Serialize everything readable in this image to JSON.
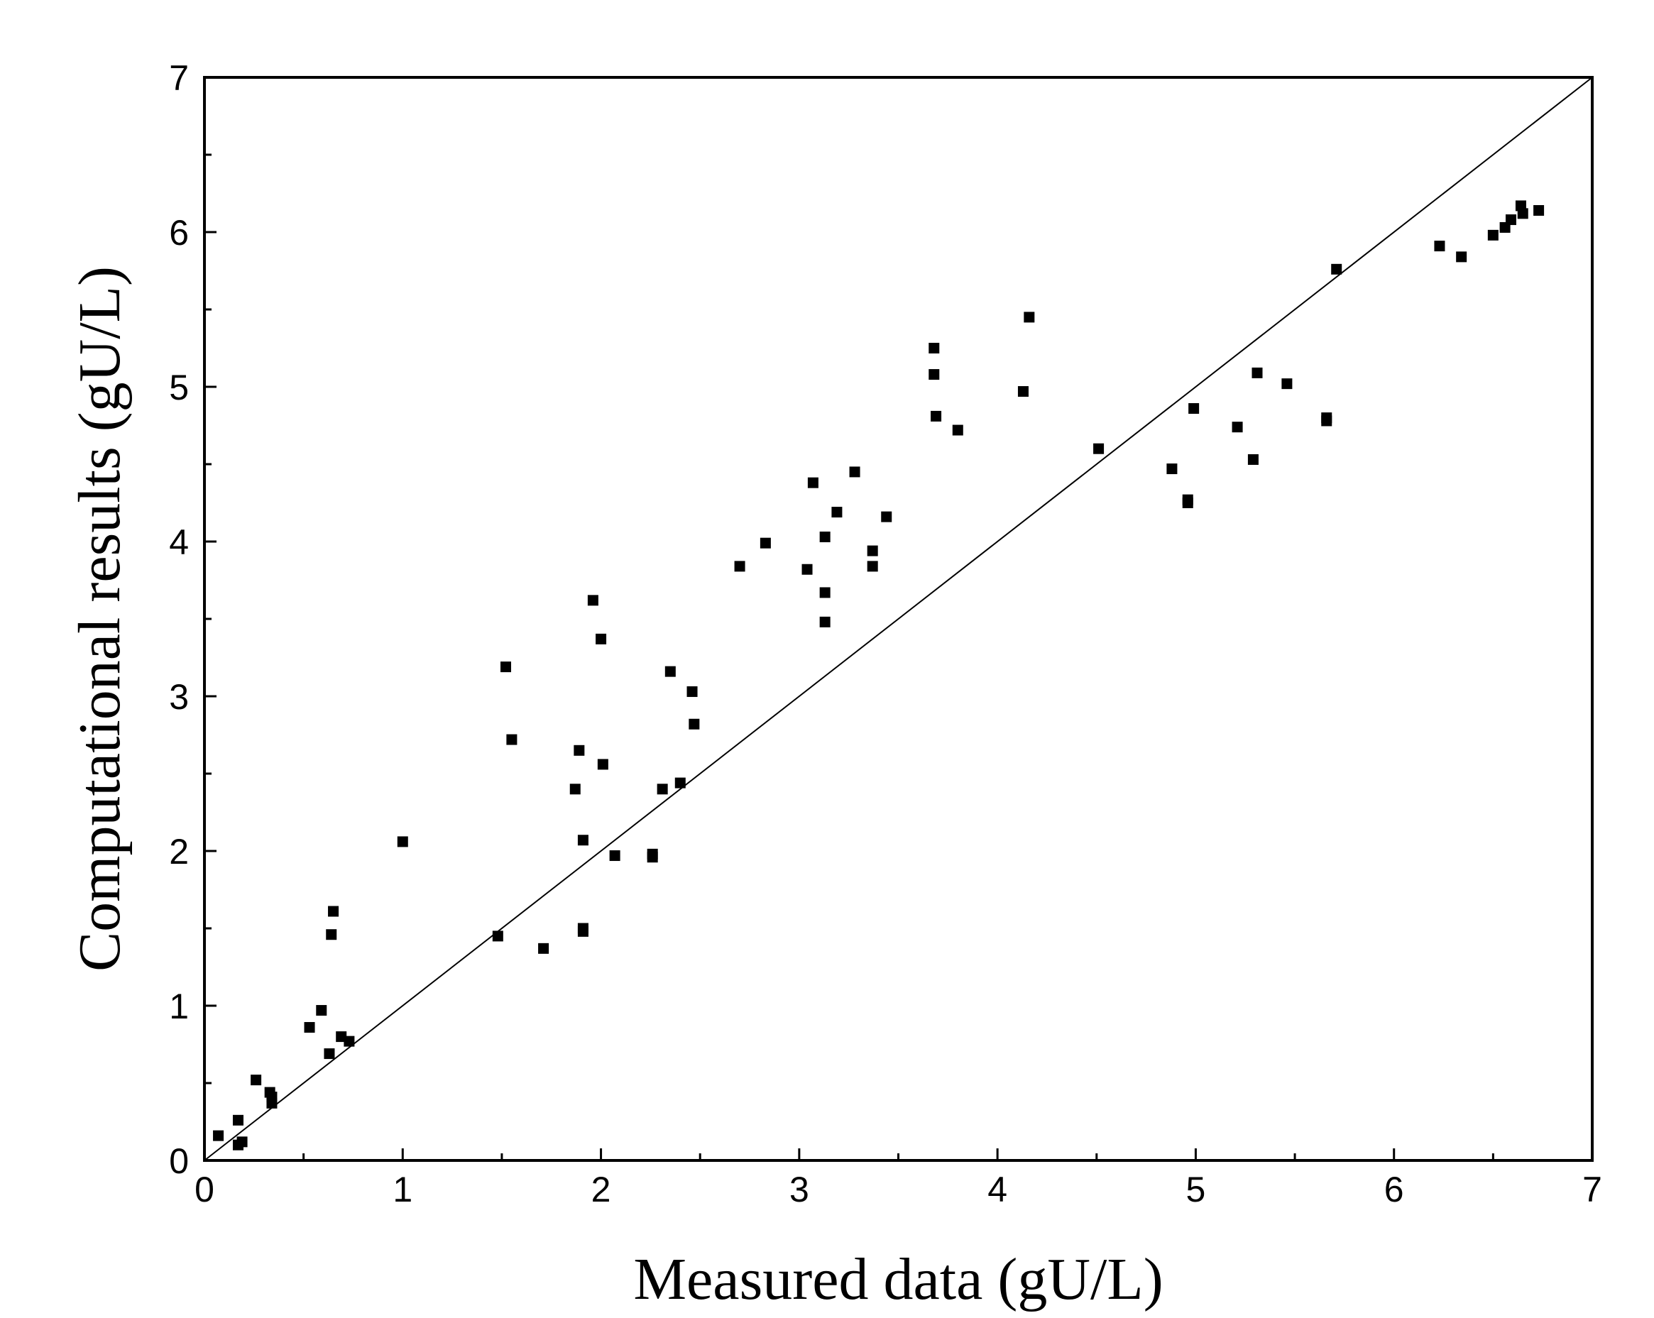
{
  "chart_data": {
    "type": "scatter",
    "title": "",
    "xlabel": "Measured data (gU/L)",
    "ylabel": "Computational results (gU/L)",
    "xlim": [
      0,
      7
    ],
    "ylim": [
      0,
      7
    ],
    "x_ticks": [
      "0",
      "1",
      "2",
      "3",
      "4",
      "5",
      "6",
      "7"
    ],
    "y_ticks": [
      "0",
      "1",
      "2",
      "3",
      "4",
      "5",
      "6",
      "7"
    ],
    "grid": false,
    "legend": "none",
    "reference_line": {
      "x": [
        0,
        7
      ],
      "y": [
        0,
        7
      ]
    },
    "marker": "square",
    "series": [
      {
        "points": [
          [
            0.07,
            0.16
          ],
          [
            0.17,
            0.1
          ],
          [
            0.17,
            0.26
          ],
          [
            0.19,
            0.12
          ],
          [
            0.26,
            0.52
          ],
          [
            0.33,
            0.44
          ],
          [
            0.34,
            0.41
          ],
          [
            0.34,
            0.37
          ],
          [
            0.53,
            0.86
          ],
          [
            0.59,
            0.97
          ],
          [
            0.63,
            0.69
          ],
          [
            0.64,
            1.46
          ],
          [
            0.65,
            1.61
          ],
          [
            0.69,
            0.8
          ],
          [
            0.73,
            0.77
          ],
          [
            1.0,
            2.06
          ],
          [
            1.48,
            1.45
          ],
          [
            1.52,
            3.19
          ],
          [
            1.55,
            2.72
          ],
          [
            1.71,
            1.37
          ],
          [
            1.87,
            2.4
          ],
          [
            1.89,
            2.65
          ],
          [
            1.91,
            2.07
          ],
          [
            1.91,
            1.5
          ],
          [
            1.91,
            1.48
          ],
          [
            1.96,
            3.62
          ],
          [
            2.0,
            3.37
          ],
          [
            2.01,
            2.56
          ],
          [
            2.07,
            1.97
          ],
          [
            2.26,
            1.98
          ],
          [
            2.26,
            1.96
          ],
          [
            2.31,
            2.4
          ],
          [
            2.35,
            3.16
          ],
          [
            2.4,
            2.44
          ],
          [
            2.46,
            3.03
          ],
          [
            2.47,
            2.82
          ],
          [
            2.7,
            3.84
          ],
          [
            2.83,
            3.99
          ],
          [
            3.04,
            3.82
          ],
          [
            3.07,
            4.38
          ],
          [
            3.13,
            4.03
          ],
          [
            3.13,
            3.67
          ],
          [
            3.13,
            3.48
          ],
          [
            3.19,
            4.19
          ],
          [
            3.28,
            4.45
          ],
          [
            3.37,
            3.94
          ],
          [
            3.37,
            3.84
          ],
          [
            3.44,
            4.16
          ],
          [
            3.68,
            5.25
          ],
          [
            3.68,
            5.08
          ],
          [
            3.69,
            4.81
          ],
          [
            3.8,
            4.72
          ],
          [
            4.13,
            4.97
          ],
          [
            4.16,
            5.45
          ],
          [
            4.51,
            4.6
          ],
          [
            4.88,
            4.47
          ],
          [
            4.96,
            4.27
          ],
          [
            4.96,
            4.25
          ],
          [
            4.99,
            4.86
          ],
          [
            5.21,
            4.74
          ],
          [
            5.29,
            4.53
          ],
          [
            5.31,
            5.09
          ],
          [
            5.46,
            5.02
          ],
          [
            5.66,
            4.8
          ],
          [
            5.66,
            4.78
          ],
          [
            5.71,
            5.76
          ],
          [
            6.23,
            5.91
          ],
          [
            6.34,
            5.84
          ],
          [
            6.5,
            5.98
          ],
          [
            6.56,
            6.03
          ],
          [
            6.59,
            6.08
          ],
          [
            6.64,
            6.17
          ],
          [
            6.65,
            6.12
          ],
          [
            6.73,
            6.14
          ]
        ]
      }
    ]
  }
}
